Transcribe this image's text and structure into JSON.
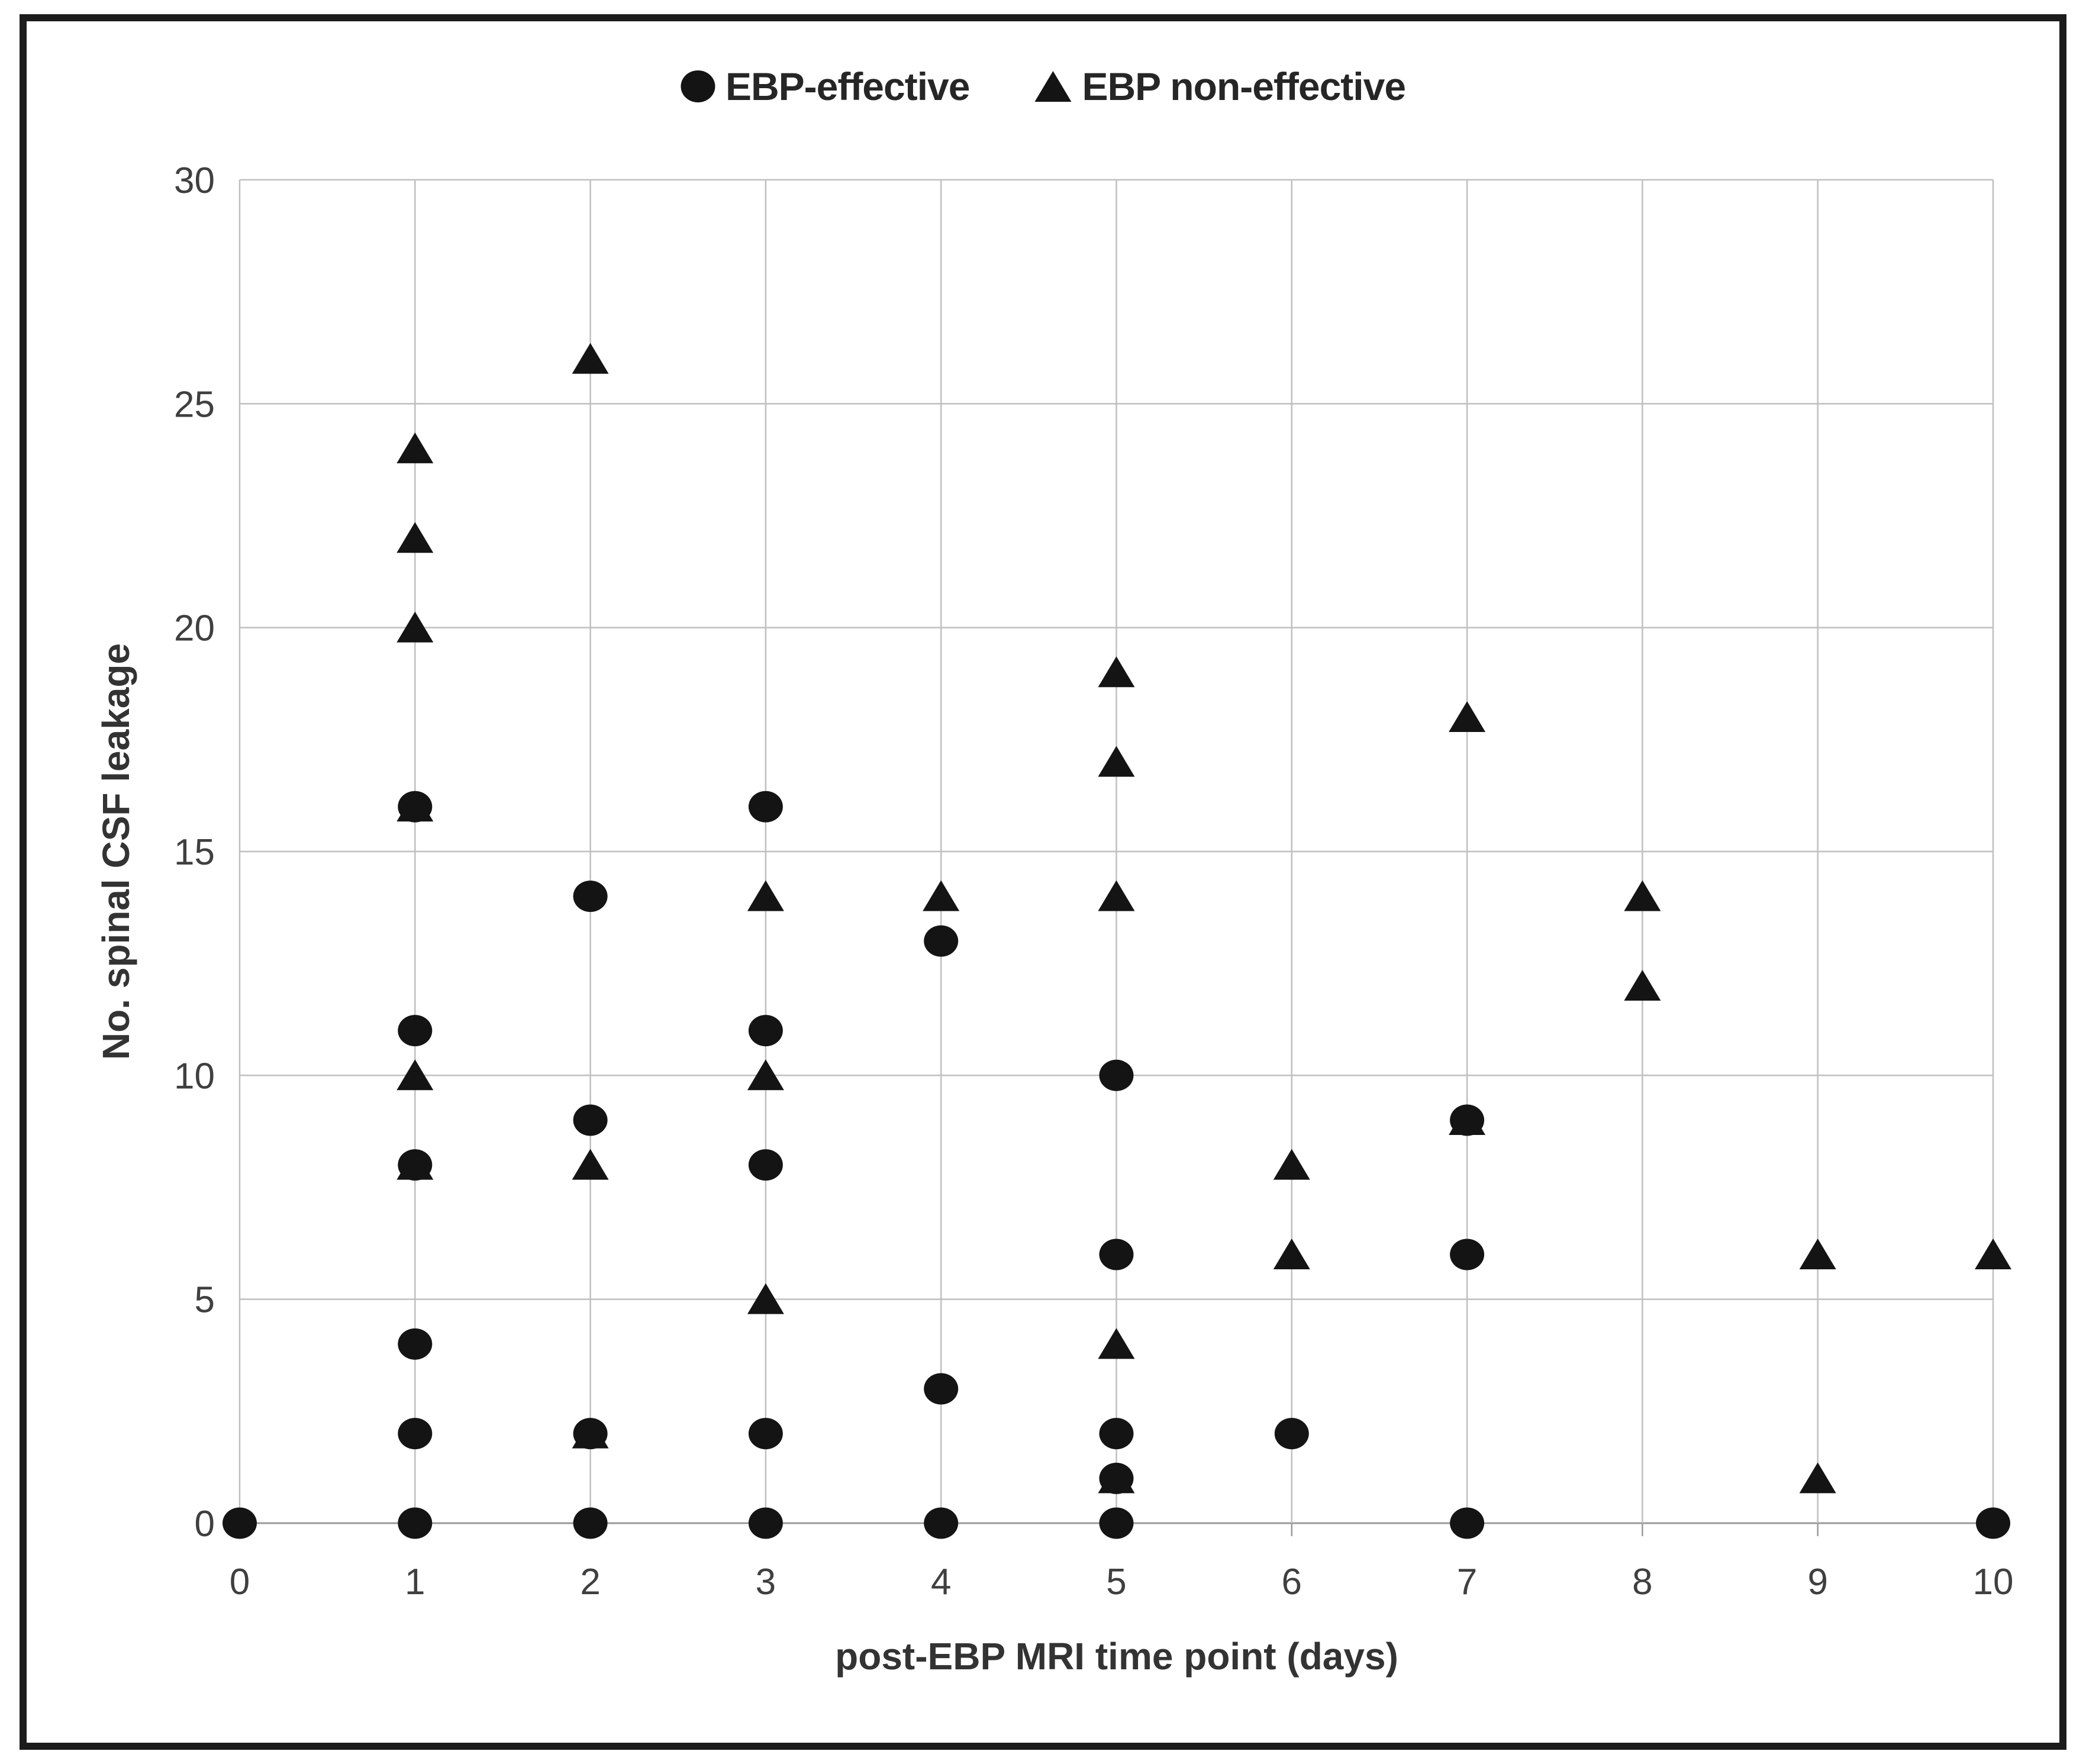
{
  "figure": {
    "background_color": "#ffffff",
    "border_color": "#1c1c1c",
    "gridline_color": "#bfbfbf",
    "axis_line_color": "#9a9a9a",
    "marker_color": "#141414",
    "text_color": "#3f3f3f"
  },
  "chart_data": {
    "type": "scatter",
    "title": "",
    "xlabel": "post-EBP MRI time point (days)",
    "ylabel": "No. spinal CSF leakage",
    "xlim": [
      0,
      10
    ],
    "ylim": [
      0,
      30
    ],
    "x_ticks": [
      0,
      1,
      2,
      3,
      4,
      5,
      6,
      7,
      8,
      9,
      10
    ],
    "y_ticks": [
      0,
      5,
      10,
      15,
      20,
      25,
      30
    ],
    "grid": true,
    "legend_position": "top-center",
    "series": [
      {
        "name": "EBP-effective",
        "marker": "circle",
        "color": "#141414",
        "points": [
          [
            0,
            0
          ],
          [
            1,
            16
          ],
          [
            1,
            11
          ],
          [
            1,
            8
          ],
          [
            1,
            4
          ],
          [
            1,
            2
          ],
          [
            1,
            0
          ],
          [
            2,
            14
          ],
          [
            2,
            9
          ],
          [
            2,
            2
          ],
          [
            2,
            0
          ],
          [
            3,
            16
          ],
          [
            3,
            11
          ],
          [
            3,
            8
          ],
          [
            3,
            2
          ],
          [
            3,
            0
          ],
          [
            4,
            13
          ],
          [
            4,
            3
          ],
          [
            4,
            0
          ],
          [
            5,
            10
          ],
          [
            5,
            6
          ],
          [
            5,
            2
          ],
          [
            5,
            1
          ],
          [
            5,
            0
          ],
          [
            6,
            2
          ],
          [
            7,
            9
          ],
          [
            7,
            6
          ],
          [
            7,
            0
          ],
          [
            10,
            0
          ]
        ]
      },
      {
        "name": "EBP non-effective",
        "marker": "triangle",
        "color": "#141414",
        "points": [
          [
            1,
            24
          ],
          [
            1,
            22
          ],
          [
            1,
            20
          ],
          [
            1,
            16
          ],
          [
            1,
            10
          ],
          [
            1,
            8
          ],
          [
            2,
            26
          ],
          [
            2,
            8
          ],
          [
            2,
            2
          ],
          [
            3,
            14
          ],
          [
            3,
            10
          ],
          [
            3,
            5
          ],
          [
            4,
            14
          ],
          [
            5,
            19
          ],
          [
            5,
            17
          ],
          [
            5,
            14
          ],
          [
            5,
            4
          ],
          [
            5,
            1
          ],
          [
            6,
            8
          ],
          [
            6,
            6
          ],
          [
            7,
            18
          ],
          [
            7,
            9
          ],
          [
            8,
            14
          ],
          [
            8,
            12
          ],
          [
            9,
            6
          ],
          [
            9,
            1
          ],
          [
            10,
            6
          ]
        ]
      }
    ]
  }
}
